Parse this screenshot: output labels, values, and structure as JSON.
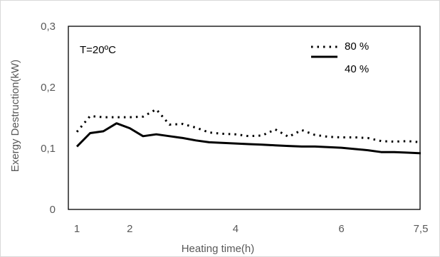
{
  "chart_data": {
    "type": "line",
    "title": "",
    "xlabel": "Heating time(h)",
    "ylabel": "Exergy Destruction(kW)",
    "xlim": [
      1,
      7.5
    ],
    "ylim": [
      0,
      0.3
    ],
    "x_ticks": [
      "1",
      "2",
      "4",
      "6",
      "7,5"
    ],
    "y_ticks": [
      "0",
      "0,1",
      "0,2",
      "0,3"
    ],
    "x": [
      1,
      1.25,
      1.5,
      1.75,
      2,
      2.25,
      2.5,
      2.75,
      3,
      3.25,
      3.5,
      3.75,
      4,
      4.25,
      4.5,
      4.75,
      5,
      5.25,
      5.5,
      5.75,
      6,
      6.25,
      6.5,
      6.75,
      7,
      7.25,
      7.5
    ],
    "series": [
      {
        "name": "80 %",
        "style": "dotted",
        "color": "#000000",
        "values": [
          0.127,
          0.153,
          0.151,
          0.151,
          0.151,
          0.152,
          0.164,
          0.139,
          0.14,
          0.134,
          0.126,
          0.124,
          0.123,
          0.12,
          0.121,
          0.131,
          0.119,
          0.13,
          0.122,
          0.119,
          0.118,
          0.118,
          0.117,
          0.112,
          0.111,
          0.112,
          0.11
        ]
      },
      {
        "name": "40 %",
        "style": "solid",
        "color": "#000000",
        "values": [
          0.103,
          0.125,
          0.128,
          0.141,
          0.133,
          0.12,
          0.123,
          0.12,
          0.117,
          0.113,
          0.11,
          0.109,
          0.108,
          0.107,
          0.106,
          0.105,
          0.104,
          0.103,
          0.103,
          0.102,
          0.101,
          0.099,
          0.097,
          0.094,
          0.094,
          0.093,
          0.092
        ]
      }
    ],
    "annotation": "T=20ºC",
    "legend_position": "top-right",
    "grid": false
  }
}
